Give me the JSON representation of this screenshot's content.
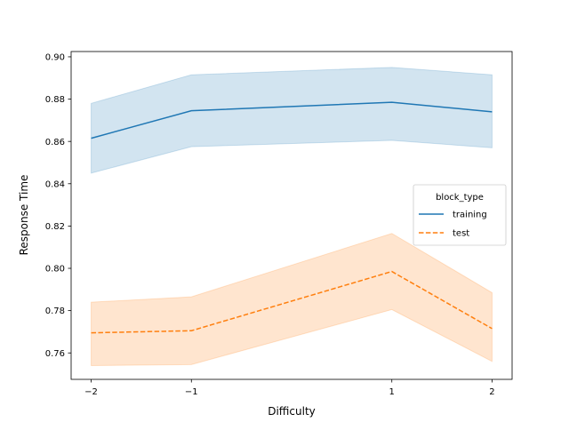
{
  "chart_data": {
    "type": "line",
    "title": "",
    "xlabel": "Difficulty",
    "ylabel": "Response Time",
    "x": [
      -2,
      -1,
      1,
      2
    ],
    "xticks": [
      -2,
      -1,
      1,
      2
    ],
    "xtick_labels": [
      "−2",
      "−1",
      "1",
      "2"
    ],
    "xlim": [
      -2.2,
      2.2
    ],
    "yticks": [
      0.76,
      0.78,
      0.8,
      0.82,
      0.84,
      0.86,
      0.88,
      0.9
    ],
    "ytick_labels": [
      "0.76",
      "0.78",
      "0.80",
      "0.82",
      "0.84",
      "0.86",
      "0.88",
      "0.90"
    ],
    "ylim": [
      0.7475,
      0.9025
    ],
    "legend": {
      "title": "block_type",
      "placement": "center-right"
    },
    "series": [
      {
        "name": "training",
        "color": "#1f77b4",
        "dash": "solid",
        "values": [
          0.8615,
          0.8745,
          0.8785,
          0.874
        ],
        "ci_lower": [
          0.845,
          0.8575,
          0.8605,
          0.857
        ],
        "ci_upper": [
          0.878,
          0.8915,
          0.895,
          0.8915
        ]
      },
      {
        "name": "test",
        "color": "#ff7f0e",
        "dash": "dashed",
        "values": [
          0.7695,
          0.7705,
          0.7985,
          0.7715
        ],
        "ci_lower": [
          0.754,
          0.7545,
          0.7805,
          0.756
        ],
        "ci_upper": [
          0.784,
          0.7865,
          0.8165,
          0.7885
        ]
      }
    ]
  }
}
